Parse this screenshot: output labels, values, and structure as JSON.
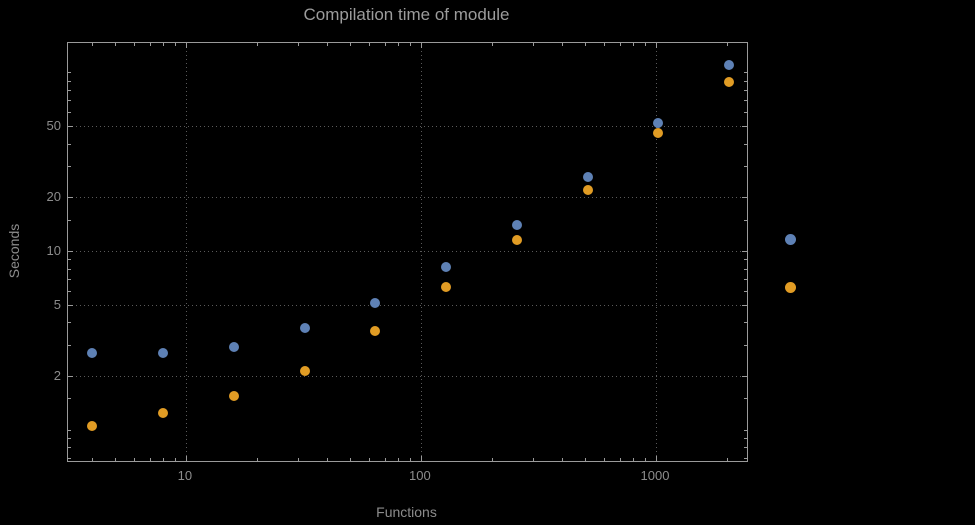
{
  "colors": {
    "background": "#000000",
    "frame": "#9a9a9a",
    "grid": "#5a5a5a",
    "tick-text": "#8c8c8c",
    "axis-text": "#8c8c8c",
    "title-text": "#9c9c9c",
    "series1": "#5e81b5",
    "series2": "#e19c24"
  },
  "chart_data": {
    "type": "scatter",
    "title": "Compilation time of module",
    "xlabel": "Functions",
    "ylabel": "Seconds",
    "x_scale": "log",
    "y_scale": "log",
    "xlim": [
      3.15,
      2440
    ],
    "ylim": [
      0.67,
      146
    ],
    "grid": "dotted",
    "legend_position": "right-outside",
    "x": [
      4,
      8,
      16,
      32,
      64,
      128,
      256,
      512,
      1024,
      2048
    ],
    "series": [
      {
        "name": "blue",
        "color": "#5e81b5",
        "values": [
          2.7,
          2.7,
          2.9,
          3.7,
          5.1,
          8.2,
          14,
          26,
          52,
          110
        ]
      },
      {
        "name": "orange",
        "color": "#e19c24",
        "values": [
          1.05,
          1.25,
          1.55,
          2.15,
          3.6,
          6.3,
          11.5,
          22,
          46,
          88
        ]
      }
    ],
    "x_ticks": [
      {
        "value": 10,
        "label": "10"
      },
      {
        "value": 100,
        "label": "100"
      },
      {
        "value": 1000,
        "label": "1000"
      }
    ],
    "y_ticks": [
      {
        "value": 2,
        "label": "2"
      },
      {
        "value": 5,
        "label": "5"
      },
      {
        "value": 10,
        "label": "10"
      },
      {
        "value": 20,
        "label": "20"
      },
      {
        "value": 50,
        "label": "50"
      }
    ],
    "x_minor_ticks": [
      4,
      5,
      6,
      7,
      8,
      9,
      20,
      30,
      40,
      50,
      60,
      70,
      80,
      90,
      200,
      300,
      400,
      500,
      600,
      700,
      800,
      900,
      2000
    ],
    "y_minor_ticks": [
      0.7,
      0.8,
      0.9,
      1,
      1.5,
      3,
      4,
      6,
      7,
      8,
      9,
      15,
      30,
      40,
      60,
      70,
      80,
      90,
      100
    ],
    "legend": [
      {
        "marker": "circle",
        "color": "#5e81b5",
        "label": ""
      },
      {
        "marker": "circle",
        "color": "#e19c24",
        "label": ""
      }
    ]
  }
}
